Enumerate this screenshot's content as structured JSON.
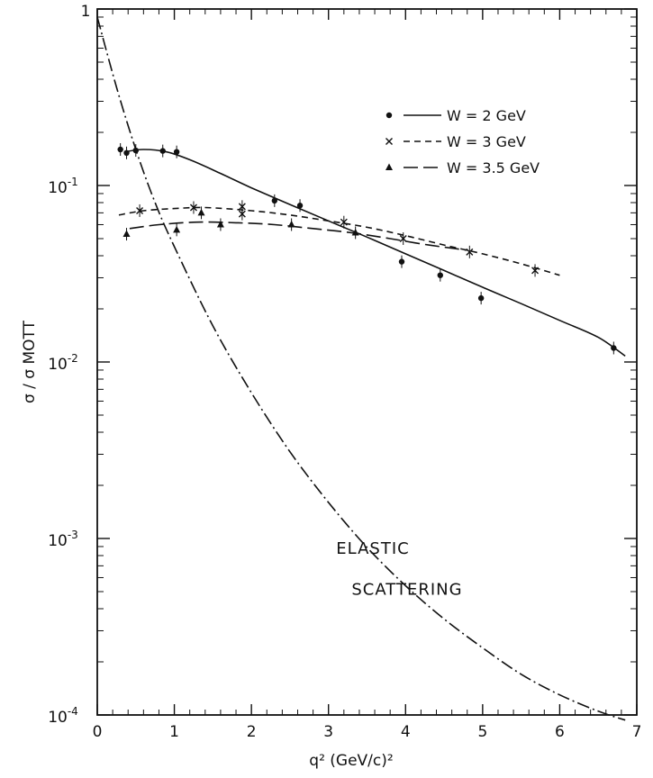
{
  "chart_data": {
    "type": "scatter",
    "xlabel": "q² (GeV/c)²",
    "ylabel": "σ / σ MOTT",
    "xlim": [
      0,
      7
    ],
    "ylim": [
      0.0001,
      1
    ],
    "yscale": "log",
    "grid": false,
    "legend_position": "top-right",
    "x_ticks": [
      {
        "value": 0,
        "label": "0"
      },
      {
        "value": 1,
        "label": "1"
      },
      {
        "value": 2,
        "label": "2"
      },
      {
        "value": 3,
        "label": "3"
      },
      {
        "value": 4,
        "label": "4"
      },
      {
        "value": 5,
        "label": "5"
      },
      {
        "value": 6,
        "label": "6"
      },
      {
        "value": 7,
        "label": "7"
      }
    ],
    "y_ticks": [
      {
        "value": 1,
        "label": "1",
        "exp": ""
      },
      {
        "value": 0.1,
        "label": "10",
        "exp": "-1"
      },
      {
        "value": 0.01,
        "label": "10",
        "exp": "-2"
      },
      {
        "value": 0.001,
        "label": "10",
        "exp": "-3"
      },
      {
        "value": 0.0001,
        "label": "10",
        "exp": "-4"
      }
    ],
    "series": [
      {
        "name": "W = 2 GeV",
        "marker": "dot",
        "line": "solid",
        "points": [
          {
            "x": 0.3,
            "y": 0.16
          },
          {
            "x": 0.38,
            "y": 0.153
          },
          {
            "x": 0.5,
            "y": 0.158
          },
          {
            "x": 0.85,
            "y": 0.157
          },
          {
            "x": 1.03,
            "y": 0.155
          },
          {
            "x": 2.3,
            "y": 0.082
          },
          {
            "x": 2.63,
            "y": 0.077
          },
          {
            "x": 3.95,
            "y": 0.037
          },
          {
            "x": 4.45,
            "y": 0.031
          },
          {
            "x": 4.98,
            "y": 0.023
          },
          {
            "x": 6.7,
            "y": 0.012
          }
        ],
        "fit": [
          {
            "x": 0.35,
            "y": 0.155
          },
          {
            "x": 0.6,
            "y": 0.16
          },
          {
            "x": 0.9,
            "y": 0.155
          },
          {
            "x": 1.2,
            "y": 0.14
          },
          {
            "x": 1.6,
            "y": 0.117
          },
          {
            "x": 2.0,
            "y": 0.097
          },
          {
            "x": 2.5,
            "y": 0.078
          },
          {
            "x": 3.0,
            "y": 0.063
          },
          {
            "x": 3.5,
            "y": 0.051
          },
          {
            "x": 4.0,
            "y": 0.041
          },
          {
            "x": 4.5,
            "y": 0.033
          },
          {
            "x": 5.0,
            "y": 0.0265
          },
          {
            "x": 5.5,
            "y": 0.0214
          },
          {
            "x": 6.0,
            "y": 0.0172
          },
          {
            "x": 6.5,
            "y": 0.0138
          },
          {
            "x": 6.85,
            "y": 0.0108
          }
        ]
      },
      {
        "name": "W = 3 GeV",
        "marker": "cross",
        "line": "dashed",
        "points": [
          {
            "x": 0.55,
            "y": 0.072
          },
          {
            "x": 1.25,
            "y": 0.075
          },
          {
            "x": 1.88,
            "y": 0.076
          },
          {
            "x": 1.88,
            "y": 0.069
          },
          {
            "x": 3.2,
            "y": 0.062
          },
          {
            "x": 3.97,
            "y": 0.05
          },
          {
            "x": 4.83,
            "y": 0.042
          },
          {
            "x": 5.68,
            "y": 0.033
          }
        ],
        "fit": [
          {
            "x": 0.28,
            "y": 0.068
          },
          {
            "x": 0.6,
            "y": 0.072
          },
          {
            "x": 1.0,
            "y": 0.074
          },
          {
            "x": 1.4,
            "y": 0.075
          },
          {
            "x": 2.0,
            "y": 0.072
          },
          {
            "x": 2.5,
            "y": 0.068
          },
          {
            "x": 3.0,
            "y": 0.063
          },
          {
            "x": 3.5,
            "y": 0.058
          },
          {
            "x": 4.0,
            "y": 0.052
          },
          {
            "x": 4.5,
            "y": 0.046
          },
          {
            "x": 5.0,
            "y": 0.041
          },
          {
            "x": 5.5,
            "y": 0.036
          },
          {
            "x": 6.0,
            "y": 0.031
          }
        ]
      },
      {
        "name": "W = 3.5 GeV",
        "marker": "triangle",
        "line": "long-dash",
        "points": [
          {
            "x": 0.38,
            "y": 0.053
          },
          {
            "x": 1.03,
            "y": 0.056
          },
          {
            "x": 1.35,
            "y": 0.07
          },
          {
            "x": 1.6,
            "y": 0.06
          },
          {
            "x": 2.52,
            "y": 0.06
          },
          {
            "x": 3.35,
            "y": 0.054
          }
        ],
        "fit": [
          {
            "x": 0.42,
            "y": 0.057
          },
          {
            "x": 0.8,
            "y": 0.06
          },
          {
            "x": 1.3,
            "y": 0.062
          },
          {
            "x": 1.8,
            "y": 0.0615
          },
          {
            "x": 2.3,
            "y": 0.06
          },
          {
            "x": 2.8,
            "y": 0.057
          },
          {
            "x": 3.3,
            "y": 0.054
          },
          {
            "x": 3.8,
            "y": 0.05
          },
          {
            "x": 4.3,
            "y": 0.046
          },
          {
            "x": 4.8,
            "y": 0.043
          }
        ]
      },
      {
        "name": "ELASTIC SCATTERING",
        "marker": "none",
        "line": "dash-dot",
        "fit": [
          {
            "x": 0.0,
            "y": 0.9
          },
          {
            "x": 0.25,
            "y": 0.36
          },
          {
            "x": 0.5,
            "y": 0.16
          },
          {
            "x": 0.75,
            "y": 0.08
          },
          {
            "x": 1.0,
            "y": 0.045
          },
          {
            "x": 1.5,
            "y": 0.016
          },
          {
            "x": 2.0,
            "y": 0.0067
          },
          {
            "x": 2.5,
            "y": 0.0031
          },
          {
            "x": 3.0,
            "y": 0.0016
          },
          {
            "x": 3.5,
            "y": 0.00089
          },
          {
            "x": 4.0,
            "y": 0.00054
          },
          {
            "x": 4.5,
            "y": 0.00035
          },
          {
            "x": 5.0,
            "y": 0.00024
          },
          {
            "x": 5.5,
            "y": 0.00017
          },
          {
            "x": 6.0,
            "y": 0.00013
          },
          {
            "x": 6.5,
            "y": 0.000105
          },
          {
            "x": 6.85,
            "y": 9.35e-05
          }
        ]
      }
    ],
    "annotations": [
      {
        "text": "ELASTIC",
        "x": 3.1,
        "y": 0.00082
      },
      {
        "text": "SCATTERING",
        "x": 3.3,
        "y": 0.00048
      }
    ]
  }
}
